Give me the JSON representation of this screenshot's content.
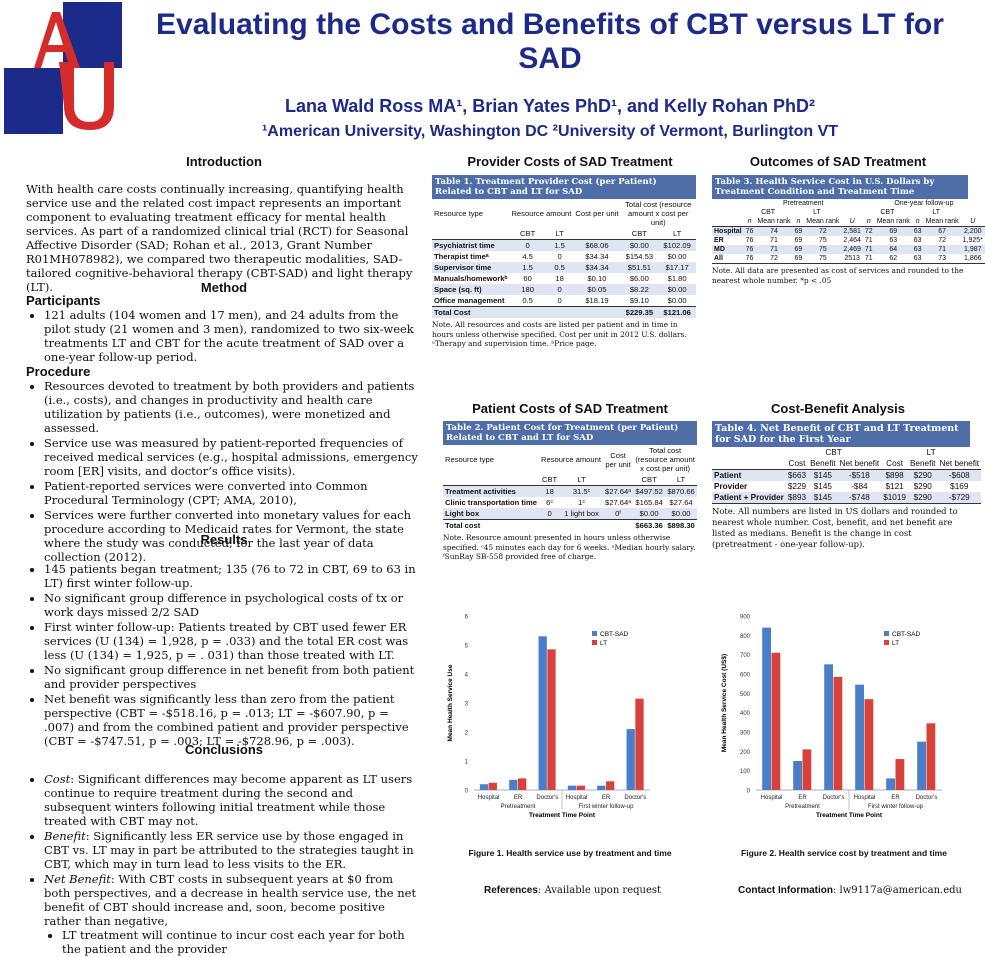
{
  "header": {
    "title": "Evaluating the Costs and Benefits of CBT versus LT for SAD",
    "authors": "Lana Wald Ross MA¹, Brian Yates PhD¹, and Kelly Rohan PhD²",
    "affiliations": "¹American University, Washington DC ²University of Vermont, Burlington VT"
  },
  "intro": {
    "heading": "Introduction",
    "text": "With health care costs continually increasing, quantifying health service use and the related cost impact represents an important component to evaluating treatment efficacy for mental health services. As part of a randomized clinical trial (RCT) for Seasonal Affective Disorder (SAD; Rohan et al., 2013, Grant Number R01MH078982), we compared two therapeutic modalities, SAD-tailored cognitive-behavioral therapy (CBT-SAD) and light therapy (LT)."
  },
  "method": {
    "heading": "Method",
    "participants_head": "Participants",
    "participants": [
      "121 adults (104 women and 17 men), and 24 adults from the pilot study (21 women and 3 men), randomized to two six-week treatments LT and CBT for the acute treatment of SAD over a one-year follow-up period."
    ],
    "procedure_head": "Procedure",
    "procedure": [
      "Resources devoted to treatment by both providers and patients (i.e., costs), and changes in productivity and health care utilization by patients (i.e., outcomes), were monetized and assessed.",
      "Service use was measured by patient-reported frequencies of received medical services (e.g., hospital admissions, emergency room [ER] visits, and doctor’s office visits).",
      "Patient-reported services were converted into Common Procedural Terminology (CPT; AMA, 2010),",
      "Services were further converted into monetary values for each procedure according to Medicaid rates for Vermont, the state where the study was conducted, for the last year of data collection (2012)."
    ]
  },
  "results": {
    "heading": "Results",
    "items": [
      "145 patients began treatment; 135 (76 to 72 in CBT, 69 to 63 in LT) first winter follow-up.",
      "No significant group difference in psychological costs of tx or work days missed 2/2 SAD",
      "First winter follow-up: Patients treated by CBT used fewer ER services (U (134) = 1,928, p = .033) and the total ER cost was less (U (134) = 1,925, p = . 031) than those treated with LT.",
      "No significant group difference in net benefit from both patient and provider perspectives",
      "Net benefit was significantly less than zero from the patient perspective (CBT = -$518.16, p = .013; LT = -$607.90, p = .007) and from the combined patient and provider perspective (CBT = -$747.51, p = .003; LT = -$728.96, p = .003)."
    ]
  },
  "conclusions": {
    "heading": "Conclusions",
    "items": [
      {
        "lead": "Cost",
        "text": ": Significant differences may become apparent as LT users continue to require treatment during the second and subsequent winters following initial treatment while those treated with CBT may not."
      },
      {
        "lead": "Benefit",
        "text": ": Significantly less ER service use by those engaged in CBT vs. LT may in part be attributed to the strategies taught in CBT, which may in turn lead to less visits to the ER."
      },
      {
        "lead": "Net Benefit",
        "text": ": With CBT costs in subsequent years at $0 from both perspectives, and a decrease in health service use, the net benefit of CBT should increase and, soon, become positive rather than negative,"
      }
    ],
    "subitem": "LT treatment will continue to incur cost each year for both the patient and the provider"
  },
  "provider_costs": {
    "heading": "Provider Costs of SAD Treatment",
    "caption": "Table 1. Treatment Provider Cost (per Patient) Related to CBT and LT for SAD",
    "h1": [
      "Resource type",
      "Resource amount",
      "Cost per unit",
      "Total cost (resource amount x cost per unit)"
    ],
    "h2": [
      "CBT",
      "LT",
      "CBT",
      "LT"
    ],
    "rows": [
      [
        "Psychiatrist time",
        "0",
        "1.5",
        "$68.06",
        "$0.00",
        "$102.09"
      ],
      [
        "Therapist timeᵃ",
        "4.5",
        "0",
        "$34.34",
        "$154.53",
        "$0.00"
      ],
      [
        "Supervisor time",
        "1.5",
        "0.5",
        "$34.34",
        "$51.51",
        "$17.17"
      ],
      [
        "Manuals/homeworkᵇ",
        "60",
        "18",
        "$0.10",
        "$6.00",
        "$1.80"
      ],
      [
        "Space (sq. ft)",
        "180",
        "0",
        "$0.05",
        "$8.22",
        "$0.00"
      ],
      [
        "Office management",
        "0.5",
        "0",
        "$18.19",
        "$9.10",
        "$0.00"
      ]
    ],
    "total": [
      "Total Cost",
      "",
      "",
      "",
      "$229.35",
      "$121.06"
    ],
    "note": "Note. All resources and costs are listed per patient and in time in hours unless otherwise specified. Cost per unit in 2012 U.S. dollars. ᵃTherapy and supervision time. ᵇPrice page."
  },
  "outcomes": {
    "heading": "Outcomes of SAD Treatment",
    "caption": "Table 3. Health Service Cost in U.S. Dollars by Treatment Condition and Treatment Time",
    "groups": [
      "Pretreatment",
      "One-year follow-up"
    ],
    "arms": [
      "CBT",
      "LT",
      "CBT",
      "LT"
    ],
    "h": [
      "",
      "n",
      "Mean rank",
      "n",
      "Mean rank",
      "U",
      "n",
      "Mean rank",
      "n",
      "Mean rank",
      "U"
    ],
    "rows": [
      [
        "Hospital",
        "76",
        "74",
        "69",
        "72",
        "2,581",
        "72",
        "69",
        "63",
        "67",
        "2,200"
      ],
      [
        "ER",
        "76",
        "71",
        "69",
        "75",
        "2,464",
        "71",
        "63",
        "63",
        "72",
        "1,925*"
      ],
      [
        "MD",
        "76",
        "71",
        "69",
        "75",
        "2,469",
        "71",
        "64",
        "63",
        "71",
        "1,987"
      ],
      [
        "All",
        "76",
        "72",
        "69",
        "75",
        "2513",
        "71",
        "62",
        "63",
        "73",
        "1,866"
      ]
    ],
    "note": "Note. All data are presented as cost of services and rounded to the nearest whole number. *p < .05"
  },
  "patient_costs": {
    "heading": "Patient Costs of SAD Treatment",
    "caption": "Table 2. Patient Cost for Treatment (per Patient) Related to CBT and LT for SAD",
    "h1": [
      "Resource type",
      "Resource amount",
      "Cost per unit",
      "Total cost (resource amount x cost per unit)"
    ],
    "h2": [
      "CBT",
      "LT",
      "CBT",
      "LT"
    ],
    "rows": [
      [
        "Treatment activities",
        "18",
        "31.5ᶜ",
        "$27.64ᵃ",
        "$497.52",
        "$870.66"
      ],
      [
        "Clinic transportation time",
        "6ᶜ",
        "1ᶜ",
        "$27.64ᵃ",
        "$165.84",
        "$27.64"
      ],
      [
        "Light box",
        "0",
        "1 light box",
        "0ᶠ",
        "$0.00",
        "$0.00"
      ]
    ],
    "total": [
      "Total cost",
      "",
      "",
      "",
      "$663.36",
      "$898.30"
    ],
    "note": "Note. Resource amount presented in hours unless otherwise specified. ᶜ45 minutes each day for 6 weeks. ᵃMedian hourly salary. ᶠSunRay SB-558 provided free of charge."
  },
  "cost_benefit": {
    "heading": "Cost-Benefit Analysis",
    "caption": "Table 4. Net Benefit of CBT and LT Treatment for SAD for the First Year",
    "arms": [
      "CBT",
      "LT"
    ],
    "h": [
      "",
      "Cost",
      "Benefit",
      "Net benefit",
      "Cost",
      "Benefit",
      "Net benefit"
    ],
    "rows": [
      [
        "Patient",
        "$663",
        "$145",
        "-$518",
        "$898",
        "$290",
        "-$608"
      ],
      [
        "Provider",
        "$229",
        "$145",
        "-$84",
        "$121",
        "$290",
        "$169"
      ],
      [
        "Patient + Provider",
        "$893",
        "$145",
        "-$748",
        "$1019",
        "$290",
        "-$729"
      ]
    ],
    "note": "Note. All numbers are listed in US dollars and rounded to nearest whole number. Cost, benefit, and net benefit are listed as medians. Benefit is the change in cost (pretreatment - one-year follow-up)."
  },
  "colors": {
    "cbt": "#4a7ec9",
    "lt": "#d8423c",
    "title": "#1c2a8a",
    "table_header": "#4f6ea8"
  },
  "chart_data": [
    {
      "type": "bar",
      "categories": [
        "Hospital",
        "ER",
        "Doctor's",
        "Hospital",
        "ER",
        "Doctor's"
      ],
      "groups": [
        "Pretreatment",
        "First winter follow-up"
      ],
      "series": [
        {
          "name": "CBT-SAD",
          "values": [
            0.2,
            0.35,
            5.3,
            0.15,
            0.15,
            2.1
          ]
        },
        {
          "name": "LT",
          "values": [
            0.25,
            0.4,
            4.85,
            0.15,
            0.3,
            3.15
          ]
        }
      ],
      "ylim": [
        0,
        6
      ],
      "yticks": [
        "0",
        "1",
        "2",
        "3",
        "4",
        "5",
        "6"
      ],
      "ylabel": "Mean Health Service Use",
      "xlabel": "Treatment Time Point",
      "caption": "Figure 1. Health service use by treatment and time"
    },
    {
      "type": "bar",
      "categories": [
        "Hospital",
        "ER",
        "Doctor's",
        "Hospital",
        "ER",
        "Doctor's"
      ],
      "groups": [
        "Pretreatment",
        "First winter follow-up"
      ],
      "series": [
        {
          "name": "CBT-SAD",
          "values": [
            840,
            150,
            650,
            545,
            60,
            250
          ]
        },
        {
          "name": "LT",
          "values": [
            710,
            210,
            585,
            470,
            160,
            345
          ]
        }
      ],
      "ylim": [
        0,
        900
      ],
      "yticks": [
        "0",
        "100",
        "200",
        "300",
        "400",
        "500",
        "600",
        "700",
        "800",
        "900"
      ],
      "ylabel": "Mean Health Service Cost (US$)",
      "xlabel": "Treatment Time Point",
      "caption": "Figure 2. Health service cost by treatment and time"
    }
  ],
  "footer": {
    "references_label": "References",
    "references_text": ": Available upon request",
    "contact_label": "Contact Information",
    "contact_text": ": lw9117a@american.edu"
  }
}
